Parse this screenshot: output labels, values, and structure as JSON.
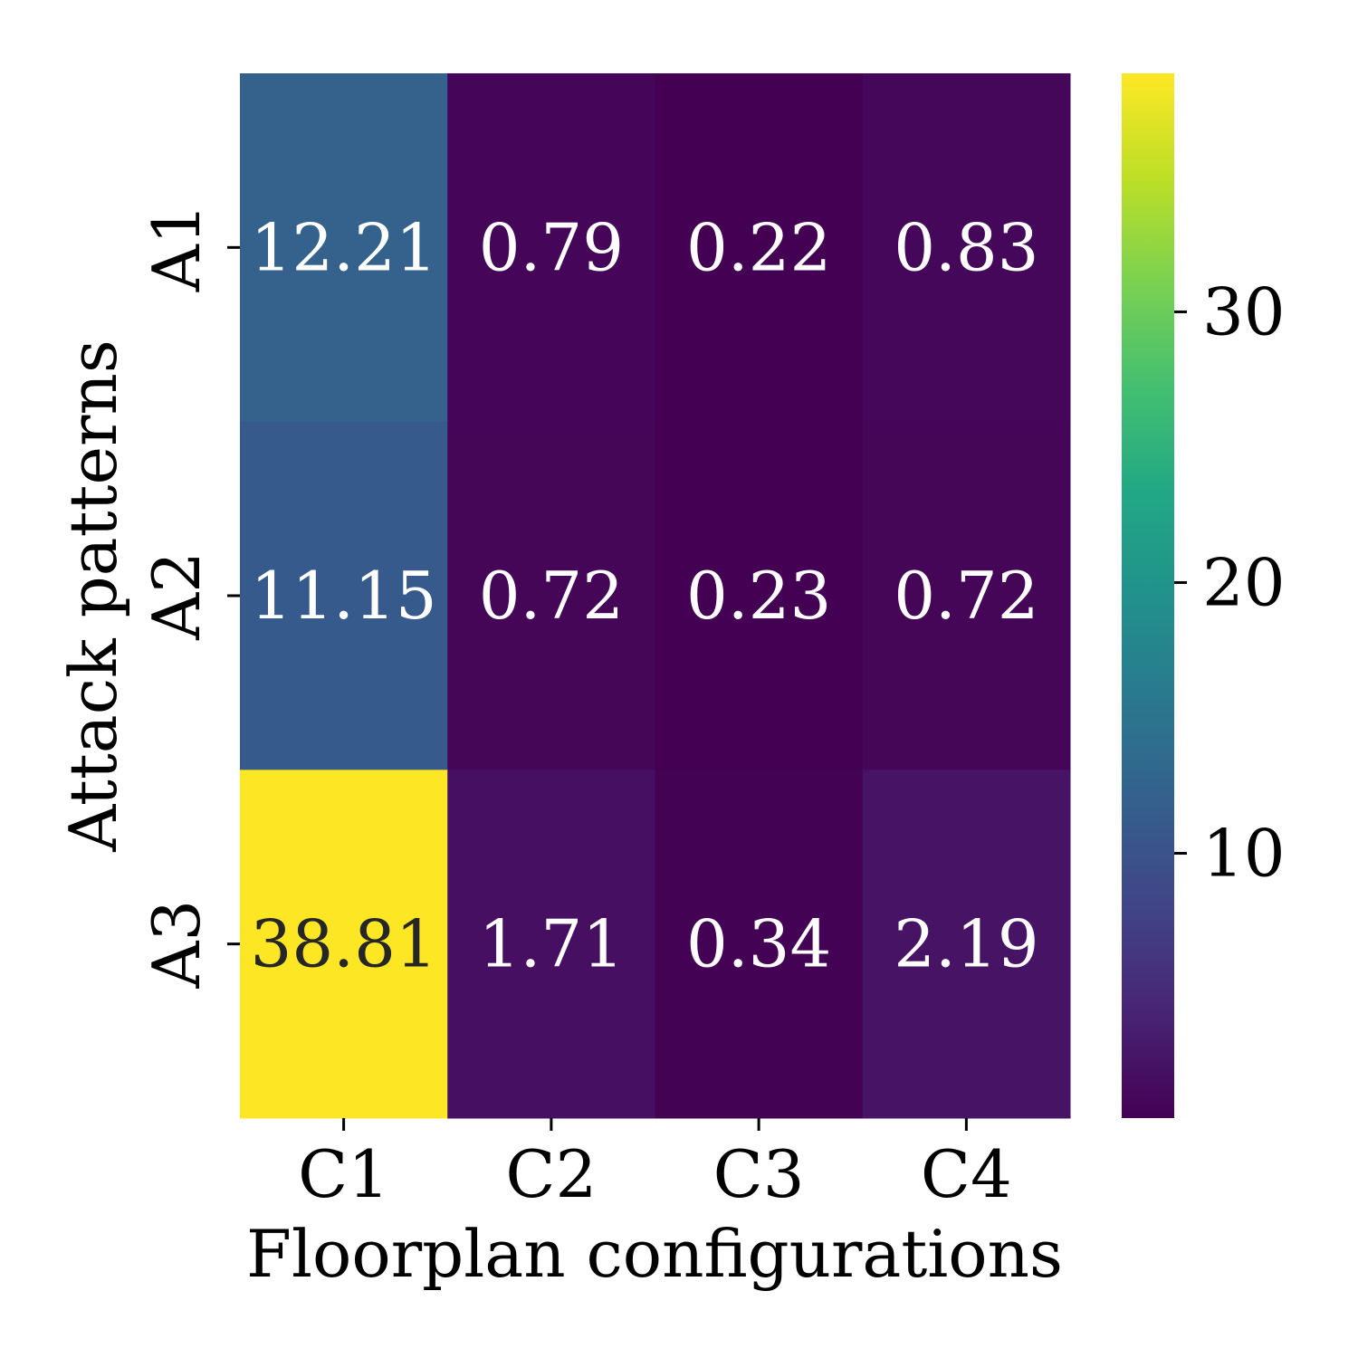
{
  "chart_data": {
    "type": "heatmap",
    "title": "",
    "xlabel": "Floorplan configurations",
    "ylabel": "Attack patterns",
    "x_categories": [
      "C1",
      "C2",
      "C3",
      "C4"
    ],
    "y_categories": [
      "A1",
      "A2",
      "A3"
    ],
    "values": [
      [
        12.21,
        0.79,
        0.22,
        0.83
      ],
      [
        11.15,
        0.72,
        0.23,
        0.72
      ],
      [
        38.81,
        1.71,
        0.34,
        2.19
      ]
    ],
    "value_labels": [
      [
        "12.21",
        "0.79",
        "0.22",
        "0.83"
      ],
      [
        "11.15",
        "0.72",
        "0.23",
        "0.72"
      ],
      [
        "38.81",
        "1.71",
        "0.34",
        "2.19"
      ]
    ],
    "colormap": "viridis",
    "color_range": [
      0.22,
      38.81
    ],
    "colorbar_ticks": [
      10,
      20,
      30
    ],
    "colorbar_tick_labels": [
      "10",
      "20",
      "30"
    ],
    "colors": {
      "light_text": "#ffffff",
      "dark_text": "#262626",
      "axis": "#000000"
    }
  }
}
